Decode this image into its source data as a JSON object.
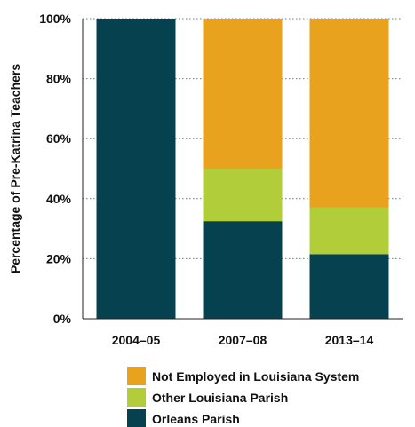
{
  "chart_data": {
    "type": "bar",
    "stacked": true,
    "title": "",
    "xlabel": "",
    "ylabel": "Percentage of Pre-Katrina Teachers",
    "ylim": [
      0,
      100
    ],
    "y_ticks": [
      "0%",
      "20%",
      "40%",
      "60%",
      "80%",
      "100%"
    ],
    "y_tick_values": [
      0,
      20,
      40,
      60,
      80,
      100
    ],
    "grid": "horizontal dotted",
    "legend_position": "bottom",
    "categories": [
      "2004–05",
      "2007–08",
      "2013–14"
    ],
    "series": [
      {
        "name": "Orleans Parish",
        "color": "#05414f",
        "values": [
          100,
          32.5,
          21.5
        ]
      },
      {
        "name": "Other Louisiana Parish",
        "color": "#b2cd3a",
        "values": [
          0,
          17.5,
          15.5
        ]
      },
      {
        "name": "Not Employed in Louisiana System",
        "color": "#e8a21e",
        "values": [
          0,
          50,
          63
        ]
      }
    ],
    "legend_order": [
      "Not Employed in Louisiana System",
      "Other Louisiana Parish",
      "Orleans Parish"
    ]
  }
}
